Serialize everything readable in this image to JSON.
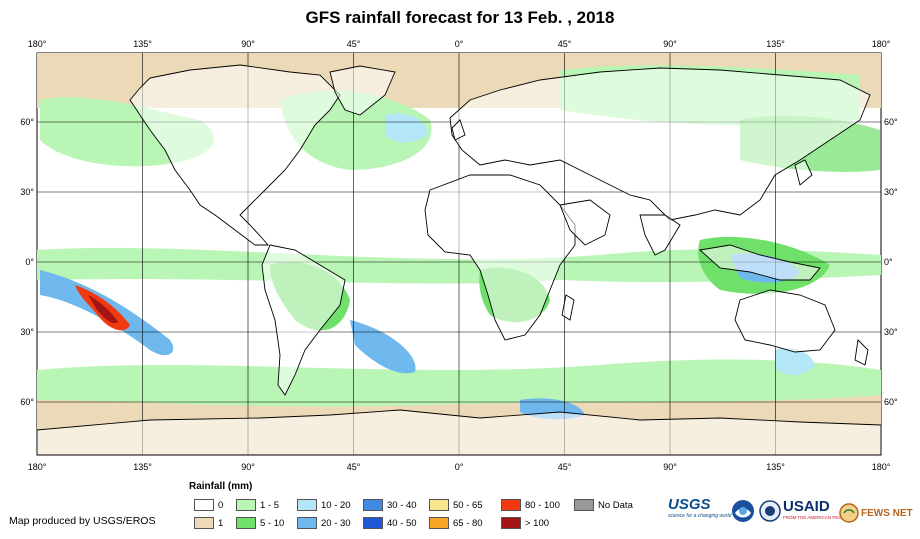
{
  "title": "GFS rainfall forecast for 13 Feb. , 2018",
  "map": {
    "longitude_labels": [
      "180°",
      "135°",
      "90°",
      "45°",
      "0°",
      "45°",
      "90°",
      "135°",
      "180°"
    ],
    "latitude_labels_left": [
      "60°",
      "30°",
      "0°",
      "30°",
      "60°"
    ],
    "latitude_labels_right": [
      "60°",
      "30°",
      "0°",
      "30°",
      "60°"
    ],
    "ocean_color": "#ffffff",
    "land_outline_color": "#000000",
    "grid_color": "#000000"
  },
  "legend": {
    "title": "Rainfall (mm)",
    "items": [
      {
        "label": "0",
        "color": "#ffffff"
      },
      {
        "label": "1",
        "color": "#ecd9b8"
      },
      {
        "label": "1 - 5",
        "color": "#b9f5b4"
      },
      {
        "label": "5 - 10",
        "color": "#6fe06a"
      },
      {
        "label": "10 - 20",
        "color": "#b3e7f7"
      },
      {
        "label": "20 - 30",
        "color": "#6fb8ee"
      },
      {
        "label": "30 - 40",
        "color": "#3f8ae3"
      },
      {
        "label": "40 - 50",
        "color": "#1f57d8"
      },
      {
        "label": "50 - 65",
        "color": "#f8e58c"
      },
      {
        "label": "65 - 80",
        "color": "#f6a623"
      },
      {
        "label": "80 - 100",
        "color": "#f23a10"
      },
      {
        "label": "> 100",
        "color": "#a31515"
      },
      {
        "label": "No Data",
        "color": "#999999"
      }
    ]
  },
  "credit": "Map produced by USGS/EROS",
  "logos": {
    "usgs": "USGS",
    "usgs_tagline": "science for a changing world",
    "usaid": "USAID",
    "usaid_tagline": "FROM THE AMERICAN PEOPLE",
    "fewsnet": "FEWS NET"
  }
}
